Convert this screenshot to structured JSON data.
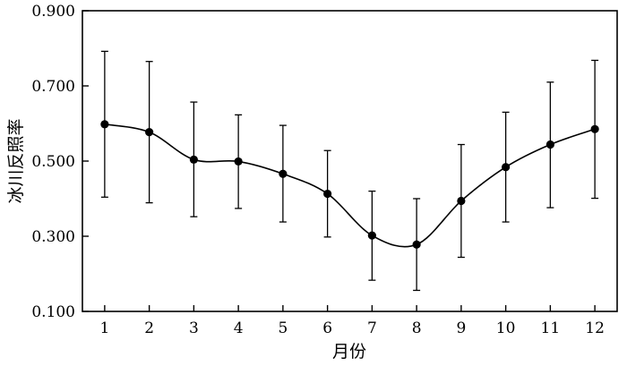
{
  "chart_data": {
    "type": "line",
    "title": "",
    "xlabel": "月份",
    "ylabel": "冰川反照率",
    "x": [
      1,
      2,
      3,
      4,
      5,
      6,
      7,
      8,
      9,
      10,
      11,
      12
    ],
    "x_tick_labels": [
      "1",
      "2",
      "3",
      "4",
      "5",
      "6",
      "7",
      "8",
      "9",
      "10",
      "11",
      "12"
    ],
    "y_tick_labels": [
      "0.100",
      "0.300",
      "0.500",
      "0.700",
      "0.900"
    ],
    "y_ticks": [
      0.1,
      0.3,
      0.5,
      0.7,
      0.9
    ],
    "xlim": [
      0.5,
      12.5
    ],
    "ylim": [
      0.1,
      0.9
    ],
    "grid": false,
    "series": [
      {
        "values": [
          0.598,
          0.577,
          0.504,
          0.499,
          0.466,
          0.413,
          0.302,
          0.278,
          0.394,
          0.484,
          0.544,
          0.585
        ],
        "error_upper": [
          0.792,
          0.765,
          0.657,
          0.623,
          0.595,
          0.528,
          0.42,
          0.4,
          0.544,
          0.63,
          0.71,
          0.768
        ],
        "error_lower": [
          0.404,
          0.389,
          0.352,
          0.374,
          0.338,
          0.298,
          0.183,
          0.156,
          0.244,
          0.338,
          0.376,
          0.401
        ],
        "color": "#000000",
        "marker": "filled-circle",
        "line_style": "smooth"
      }
    ]
  }
}
